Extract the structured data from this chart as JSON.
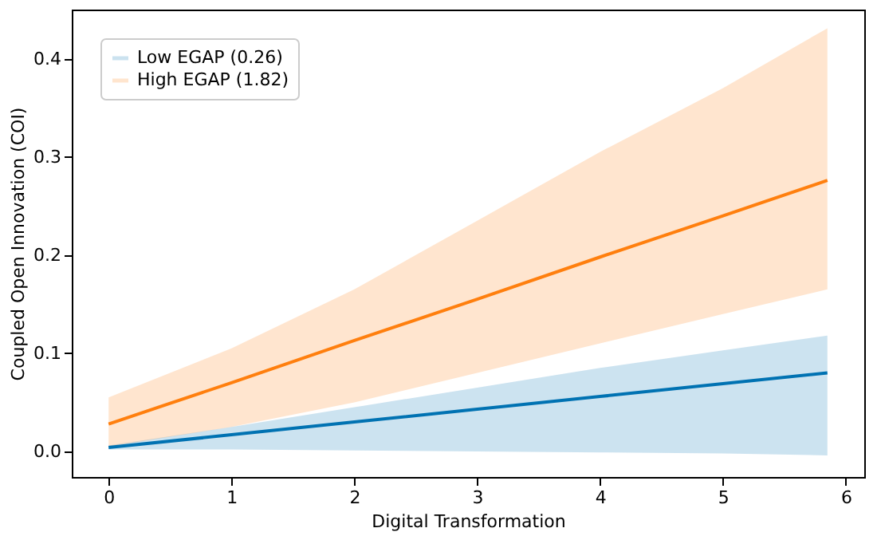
{
  "chart_data": {
    "type": "line",
    "xlabel": "Digital Transformation",
    "ylabel": "Coupled Open Innovation (COI)",
    "x": [
      0,
      1,
      2,
      3,
      4,
      5,
      5.85
    ],
    "series": [
      {
        "name": "Low EGAP (0.26)",
        "color": "#0072b2",
        "values": [
          0.004,
          0.017,
          0.03,
          0.043,
          0.056,
          0.069,
          0.08
        ],
        "lower": [
          0.002,
          0.002,
          0.001,
          0.0,
          -0.001,
          -0.002,
          -0.004
        ],
        "upper": [
          0.006,
          0.025,
          0.045,
          0.065,
          0.085,
          0.103,
          0.118
        ]
      },
      {
        "name": "High EGAP (1.82)",
        "color": "#ff7f0e",
        "values": [
          0.028,
          0.07,
          0.113,
          0.155,
          0.198,
          0.24,
          0.276
        ],
        "lower": [
          0.005,
          0.025,
          0.05,
          0.08,
          0.11,
          0.14,
          0.165
        ],
        "upper": [
          0.055,
          0.105,
          0.165,
          0.235,
          0.305,
          0.37,
          0.431
        ]
      }
    ],
    "xlim": [
      -0.3,
      6.15
    ],
    "xticks": [
      0,
      1,
      2,
      3,
      4,
      5,
      6
    ],
    "ylim": [
      -0.026,
      0.45
    ],
    "yticks": [
      {
        "value": 0,
        "label": "0.0"
      },
      {
        "value": 0.1,
        "label": "0.1"
      },
      {
        "value": 0.2,
        "label": "0.2"
      },
      {
        "value": 0.3,
        "label": "0.3"
      },
      {
        "value": 0.4,
        "label": "0.4"
      }
    ],
    "grid": false,
    "legend": "top left",
    "marker": "none",
    "line_style": "solid"
  }
}
